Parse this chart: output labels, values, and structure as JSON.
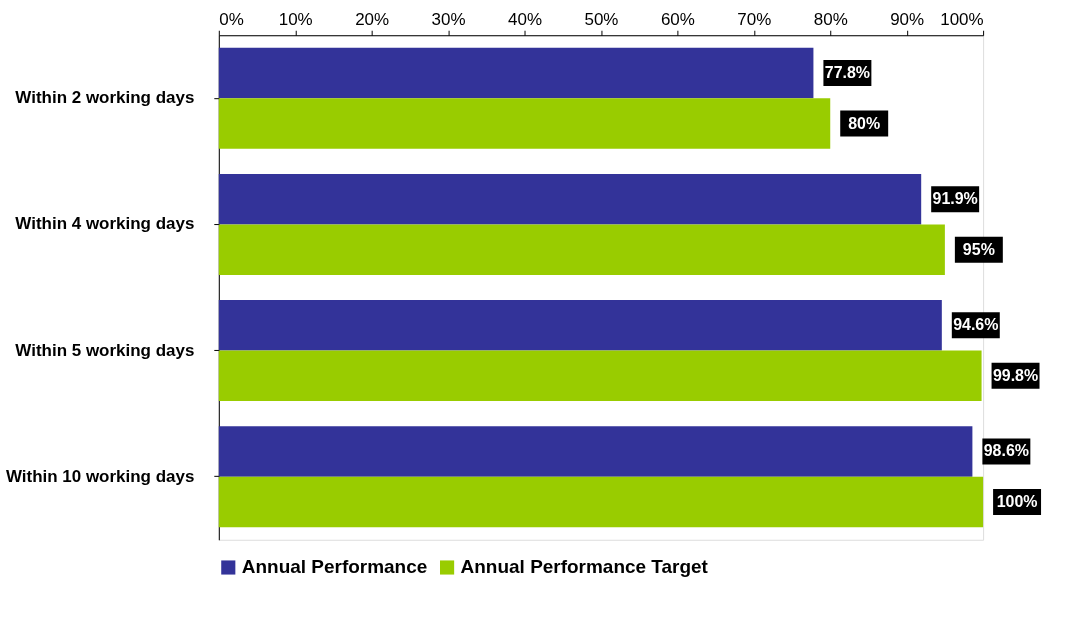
{
  "chart_data": {
    "type": "bar",
    "orientation": "horizontal",
    "categories": [
      "Within 2 working days",
      "Within 4 working days",
      "Within 5 working days",
      "Within 10 working days"
    ],
    "series": [
      {
        "name": "Annual Performance",
        "color": "#333399",
        "values": [
          77.8,
          91.9,
          94.6,
          98.6
        ],
        "value_labels": [
          "77.8%",
          "91.9%",
          "94.6%",
          "98.6%"
        ]
      },
      {
        "name": "Annual Performance Target",
        "color": "#99cc00",
        "values": [
          80,
          95,
          99.8,
          100
        ],
        "value_labels": [
          "80%",
          "95%",
          "99.8%",
          "100%"
        ]
      }
    ],
    "xlim": [
      0,
      100
    ],
    "xticks": [
      {
        "value": 0,
        "label": "0%"
      },
      {
        "value": 10,
        "label": "10%"
      },
      {
        "value": 20,
        "label": "20%"
      },
      {
        "value": 30,
        "label": "30%"
      },
      {
        "value": 40,
        "label": "40%"
      },
      {
        "value": 50,
        "label": "50%"
      },
      {
        "value": 60,
        "label": "60%"
      },
      {
        "value": 70,
        "label": "70%"
      },
      {
        "value": 80,
        "label": "80%"
      },
      {
        "value": 90,
        "label": "90%"
      },
      {
        "value": 100,
        "label": "100%"
      }
    ],
    "grid": false,
    "legend": "bottom"
  }
}
